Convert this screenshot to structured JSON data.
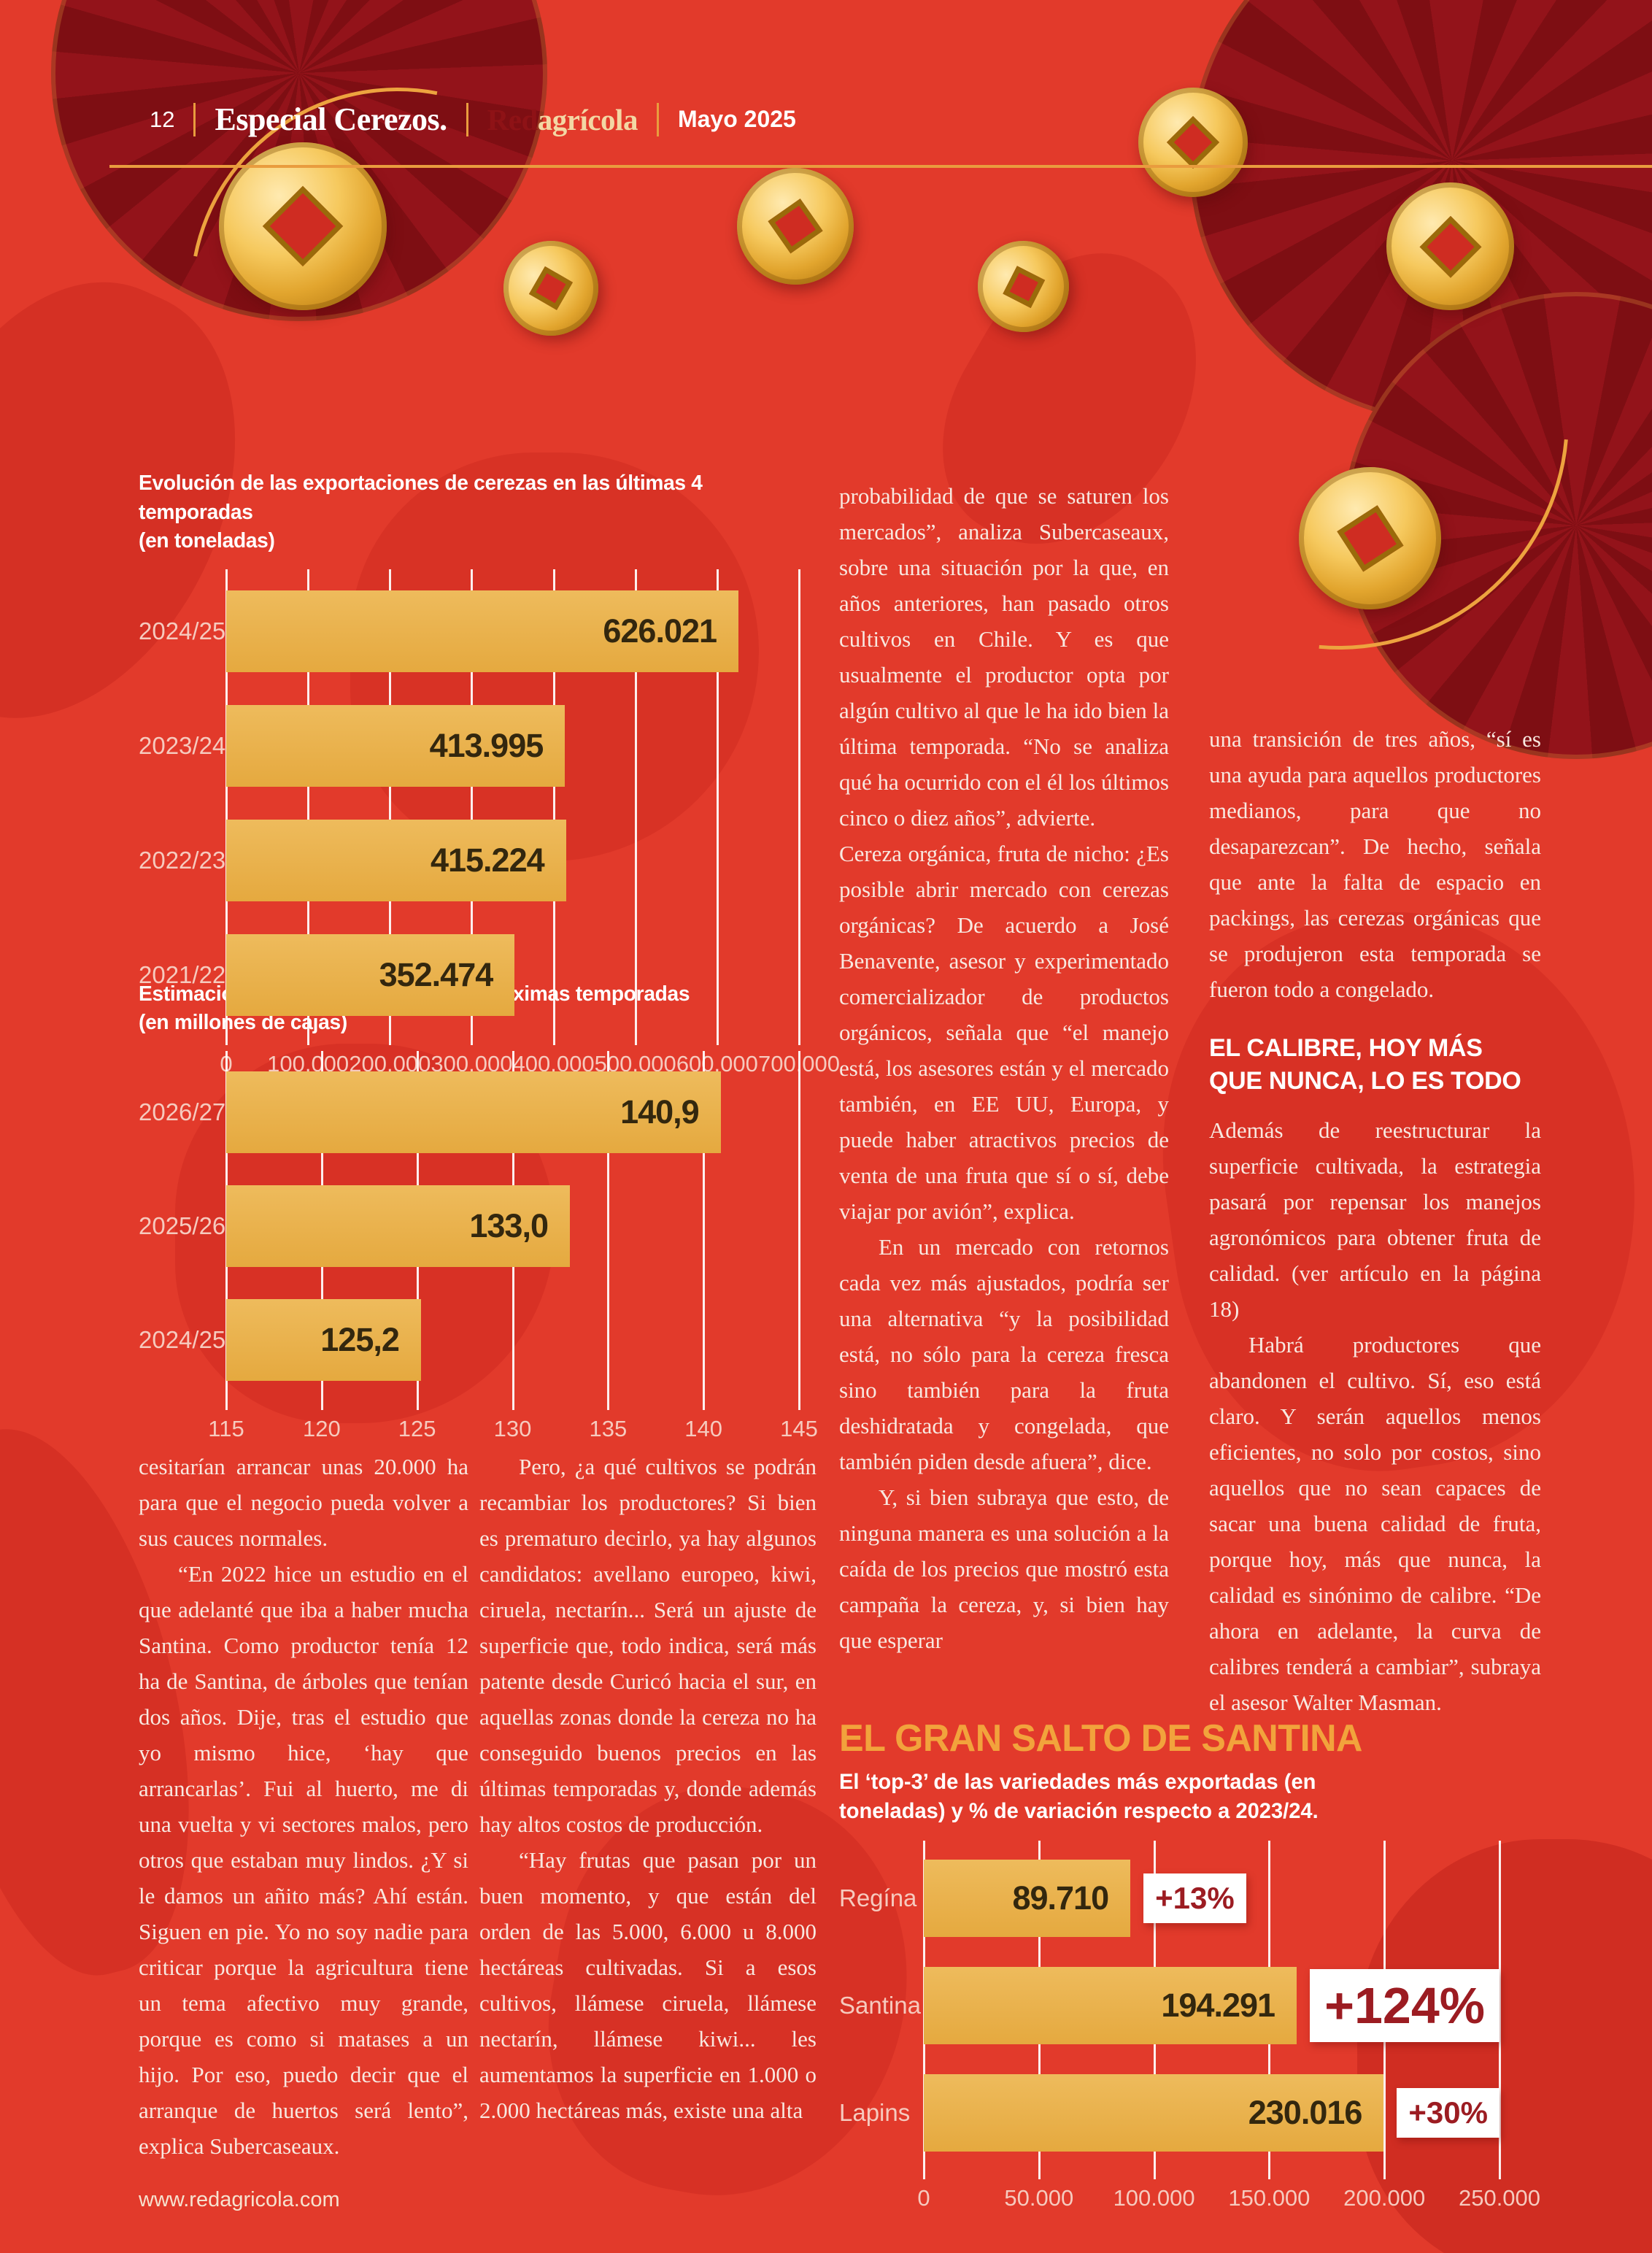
{
  "colors": {
    "page_background": "#e23a2b",
    "bar_gold": "#e8b04a",
    "value_text": "#33270e",
    "badge_background": "#ffffff",
    "badge_text": "#9c1c22",
    "santina_title_gold": "#f2a33c",
    "chart_label_pink": "#f6cabe",
    "header_rule_orange": "#e99c3e",
    "fan_dark_red": "#93131a"
  },
  "header": {
    "page_number": "12",
    "section_title": "Especial Cerezos.",
    "brand_red": "Red",
    "brand_rest": "agrícola",
    "date": "Mayo 2025"
  },
  "footer": {
    "url": "www.redagricola.com"
  },
  "articles": {
    "left_bottom": [
      {
        "style": "p",
        "text": "cesitarían arrancar unas 20.000 ha para que el negocio pueda volver a sus cauces normales."
      },
      {
        "style": "p-indent",
        "text": "“En 2022 hice un estudio en el que adelanté que iba a haber mucha Santina. Como productor tenía 12 ha de Santina, de árboles que tenían dos años. Dije, tras el estudio que yo mismo hice, ‘hay que arrancarlas’. Fui al huerto, me di una vuelta y vi sectores malos, pero otros que estaban muy lindos. ¿Y si le damos un añito más? Ahí están. Siguen en pie. Yo no soy nadie para criticar porque la agricultura tiene un tema afectivo muy grande, porque es como si matases a un hijo. Por eso, puedo decir que el arranque de huertos será lento”, explica Subercaseaux."
      }
    ],
    "mid_bottom": [
      {
        "style": "p-indent",
        "text": "Pero, ¿a qué cultivos se podrán recambiar los productores? Si bien es prematuro decirlo, ya hay algunos candidatos: avellano europeo, kiwi, ciruela, nectarín... Será un ajuste de superficie que, todo indica, será más patente desde Curicó hacia el sur, en aquellas zonas donde la cereza no ha conseguido buenos precios en las últimas temporadas y, donde además hay altos costos de producción."
      },
      {
        "style": "p-indent",
        "text": "“Hay frutas que pasan por un buen momento, y que están del orden de las 5.000, 6.000 u 8.000 hectáreas cultivadas. Si a esos cultivos, llámese ciruela, llámese nectarín, llámese kiwi... les aumentamos la superficie en 1.000 o 2.000 hectáreas más, existe una alta"
      }
    ],
    "middle": [
      {
        "style": "p",
        "text": "probabilidad de que se saturen los mercados”, analiza Subercaseaux, sobre una situación por la que, en años anteriores, han pasado otros cultivos en Chile. Y es que usualmente el productor opta por algún cultivo al que le ha ido bien la última temporada. “No se analiza qué ha ocurrido con el él los últimos cinco o diez años”, advierte."
      },
      {
        "style": "p",
        "text": "Cereza orgánica, fruta de nicho: ¿Es posible abrir mercado con cerezas orgánicas? De acuerdo a José Benavente, asesor y experimentado comercializador de productos orgánicos, señala que “el manejo está, los asesores están y el mercado también, en EE UU, Europa, y puede haber atractivos precios de venta de una fruta que sí o sí, debe viajar por avión”, explica."
      },
      {
        "style": "p-indent",
        "text": "En un mercado con retornos cada vez más ajustados, podría ser una alternativa “y la posibilidad está, no sólo para la cereza fresca sino también para la fruta deshidratada y congelada, que también piden desde afuera”, dice."
      },
      {
        "style": "p-indent",
        "text": "Y, si bien subraya que esto, de ninguna manera es una solución a la caída de los precios que mostró esta campaña la cereza, y, si bien hay que esperar"
      }
    ],
    "right": [
      {
        "style": "p",
        "text": "una transición de tres años, “sí es una ayuda para aquellos productores medianos, para que no desaparezcan”. De hecho, señala que ante la falta de espacio en packings, las cerezas orgánicas que se produjeron esta temporada se fueron todo a congelado."
      },
      {
        "style": "heading",
        "text": "EL CALIBRE, HOY MÁS QUE NUNCA, LO ES TODO"
      },
      {
        "style": "p",
        "text": "Además de reestructurar la superficie cultivada, la estrategia pasará por repensar los manejos agronómicos para obtener fruta de calidad. (ver artículo en la página 18)"
      },
      {
        "style": "p-indent",
        "text": "Habrá productores que abandonen el cultivo. Sí, eso está claro. Y serán aquellos menos eficientes, no solo por costos, sino aquellos que no sean capaces de sacar una buena calidad de fruta, porque hoy, más que nunca, la calidad es sinónimo de calibre. “De ahora en adelante, la curva de calibres tenderá a cambiar”, subraya el asesor Walter Masman."
      }
    ]
  },
  "chart_data": [
    {
      "type": "bar",
      "title": "Evolución de las exportaciones de cerezas en las últimas 4 temporadas",
      "subtitle": "(en toneladas)",
      "categories": [
        "2024/25",
        "2023/24",
        "2022/23",
        "2021/22"
      ],
      "values": [
        626021,
        413995,
        415224,
        352474
      ],
      "value_labels": [
        "626.021",
        "413.995",
        "415.224",
        "352.474"
      ],
      "xlim": [
        0,
        700000
      ],
      "ticks": [
        "0",
        "100.000",
        "200.000",
        "300.000",
        "400.000",
        "500.000",
        "600.000",
        "700.000"
      ],
      "grid": "on",
      "legend": "none",
      "orientation": "horizontal"
    },
    {
      "type": "bar",
      "title": "Estimaciones de producción en las próximas temporadas",
      "subtitle": "(en millones de cajas)",
      "categories": [
        "2026/27",
        "2025/26",
        "2024/25"
      ],
      "values": [
        140.9,
        133.0,
        125.2
      ],
      "value_labels": [
        "140,9",
        "133,0",
        "125,2"
      ],
      "xlim": [
        115,
        145
      ],
      "ticks": [
        "115",
        "120",
        "125",
        "130",
        "135",
        "140",
        "145"
      ],
      "grid": "on",
      "legend": "none",
      "orientation": "horizontal"
    },
    {
      "type": "bar",
      "title": "EL GRAN SALTO DE SANTINA",
      "subtitle": "El ‘top-3’ de las variedades más exportadas (en toneladas) y % de variación respecto a 2023/24.",
      "categories": [
        "Regína",
        "Santina",
        "Lapins"
      ],
      "values": [
        89710,
        194291,
        230016
      ],
      "value_labels": [
        "89.710",
        "194.291",
        "230.016"
      ],
      "badges": [
        "+13%",
        "+124%",
        "+30%"
      ],
      "badge_large": 1,
      "xlim": [
        0,
        250000
      ],
      "ticks": [
        "0",
        "50.000",
        "100.000",
        "150.000",
        "200.000",
        "250.000"
      ],
      "grid": "on",
      "legend": "none",
      "orientation": "horizontal"
    }
  ]
}
